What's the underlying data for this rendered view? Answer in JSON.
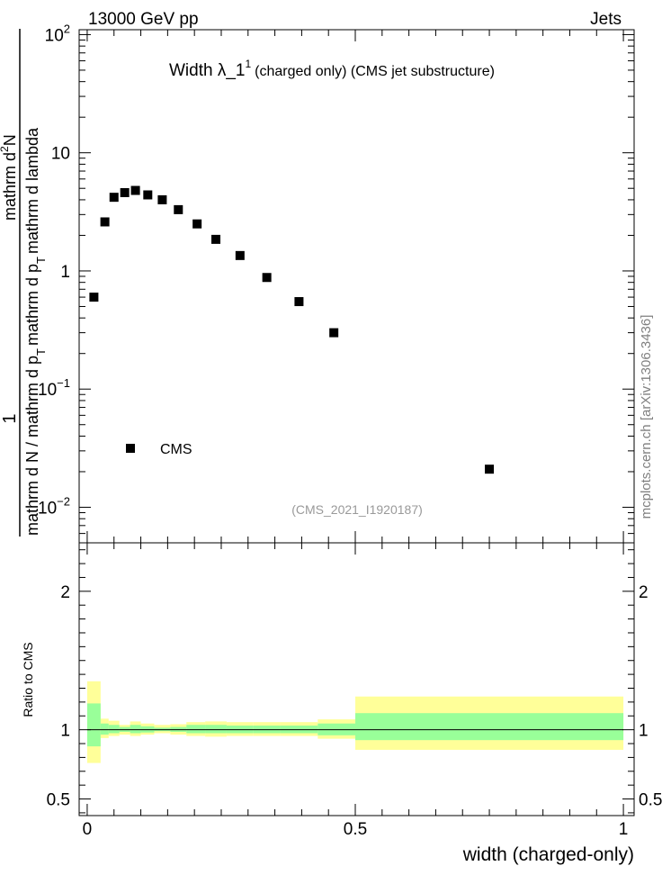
{
  "header": {
    "left": "13000 GeV pp",
    "right": "Jets"
  },
  "plot_title": {
    "main": "Width λ_1",
    "sup": "1",
    "rest": "(charged only) (CMS jet substructure)"
  },
  "analysis_id": "(CMS_2021_I1920187)",
  "side_label": "mcplots.cern.ch [arXiv:1306.3436]",
  "legend": {
    "label": "CMS"
  },
  "ylabel_main": {
    "numerator": "1",
    "denominator": "mathrm d N / mathrm d p",
    "sub_t": "T",
    "num_expr": "mathrm d",
    "num_sup": "2",
    "num_n": "N",
    "den_expr": "mathrm d p",
    "den_sub": "T",
    "den_tail": "mathrm d lambda"
  },
  "ylabel_ratio": "Ratio to CMS",
  "xlabel": "width (charged-only)",
  "colors": {
    "yellow_band": "#ffff99",
    "green_band": "#99ff99",
    "marker": "#000000"
  },
  "chart_data": [
    {
      "type": "scatter",
      "yscale": "log",
      "ylim": [
        0.005,
        110
      ],
      "xlim": [
        -0.015,
        1.02
      ],
      "series": [
        {
          "name": "CMS",
          "x": [
            0.0125,
            0.033,
            0.05,
            0.07,
            0.09,
            0.113,
            0.14,
            0.17,
            0.205,
            0.24,
            0.285,
            0.335,
            0.395,
            0.46,
            0.75
          ],
          "y": [
            0.6,
            2.6,
            4.2,
            4.6,
            4.8,
            4.4,
            4.0,
            3.3,
            2.5,
            1.85,
            1.35,
            0.88,
            0.55,
            0.3,
            0.021
          ]
        }
      ],
      "yticks": [
        {
          "value": 0.01,
          "base": "10",
          "exp": "−2"
        },
        {
          "value": 0.1,
          "base": "10",
          "exp": "−1"
        },
        {
          "value": 1,
          "base": "1",
          "exp": ""
        },
        {
          "value": 10,
          "base": "10",
          "exp": ""
        },
        {
          "value": 100,
          "base": "10",
          "exp": "2"
        }
      ]
    },
    {
      "type": "area",
      "ylim": [
        0.38,
        2.35
      ],
      "xlim": [
        -0.015,
        1.02
      ],
      "reference": 1,
      "bands": [
        {
          "x0": 0.0,
          "x1": 0.025,
          "yellow": [
            0.76,
            1.35
          ],
          "green": [
            0.88,
            1.19
          ]
        },
        {
          "x0": 0.025,
          "x1": 0.04,
          "yellow": [
            0.94,
            1.08
          ],
          "green": [
            0.965,
            1.045
          ]
        },
        {
          "x0": 0.04,
          "x1": 0.06,
          "yellow": [
            0.955,
            1.065
          ],
          "green": [
            0.975,
            1.035
          ]
        },
        {
          "x0": 0.06,
          "x1": 0.08,
          "yellow": [
            0.965,
            1.035
          ],
          "green": [
            0.985,
            1.02
          ]
        },
        {
          "x0": 0.08,
          "x1": 0.1,
          "yellow": [
            0.955,
            1.06
          ],
          "green": [
            0.975,
            1.035
          ]
        },
        {
          "x0": 0.1,
          "x1": 0.125,
          "yellow": [
            0.965,
            1.045
          ],
          "green": [
            0.98,
            1.025
          ]
        },
        {
          "x0": 0.125,
          "x1": 0.155,
          "yellow": [
            0.975,
            1.035
          ],
          "green": [
            0.99,
            1.015
          ]
        },
        {
          "x0": 0.155,
          "x1": 0.185,
          "yellow": [
            0.965,
            1.04
          ],
          "green": [
            0.985,
            1.02
          ]
        },
        {
          "x0": 0.185,
          "x1": 0.22,
          "yellow": [
            0.955,
            1.055
          ],
          "green": [
            0.975,
            1.035
          ]
        },
        {
          "x0": 0.22,
          "x1": 0.26,
          "yellow": [
            0.95,
            1.06
          ],
          "green": [
            0.975,
            1.035
          ]
        },
        {
          "x0": 0.26,
          "x1": 0.31,
          "yellow": [
            0.955,
            1.055
          ],
          "green": [
            0.975,
            1.03
          ]
        },
        {
          "x0": 0.31,
          "x1": 0.36,
          "yellow": [
            0.955,
            1.055
          ],
          "green": [
            0.975,
            1.03
          ]
        },
        {
          "x0": 0.36,
          "x1": 0.43,
          "yellow": [
            0.955,
            1.055
          ],
          "green": [
            0.975,
            1.03
          ]
        },
        {
          "x0": 0.43,
          "x1": 0.5,
          "yellow": [
            0.935,
            1.075
          ],
          "green": [
            0.96,
            1.045
          ]
        },
        {
          "x0": 0.5,
          "x1": 1.0,
          "yellow": [
            0.855,
            1.24
          ],
          "green": [
            0.925,
            1.12
          ]
        }
      ],
      "yticks": [
        {
          "value": 0.5,
          "label": "0.5"
        },
        {
          "value": 1,
          "label": "1"
        },
        {
          "value": 2,
          "label": "2"
        }
      ],
      "xticks": [
        {
          "value": 0,
          "label": "0"
        },
        {
          "value": 0.5,
          "label": "0.5"
        },
        {
          "value": 1,
          "label": "1"
        }
      ]
    }
  ]
}
